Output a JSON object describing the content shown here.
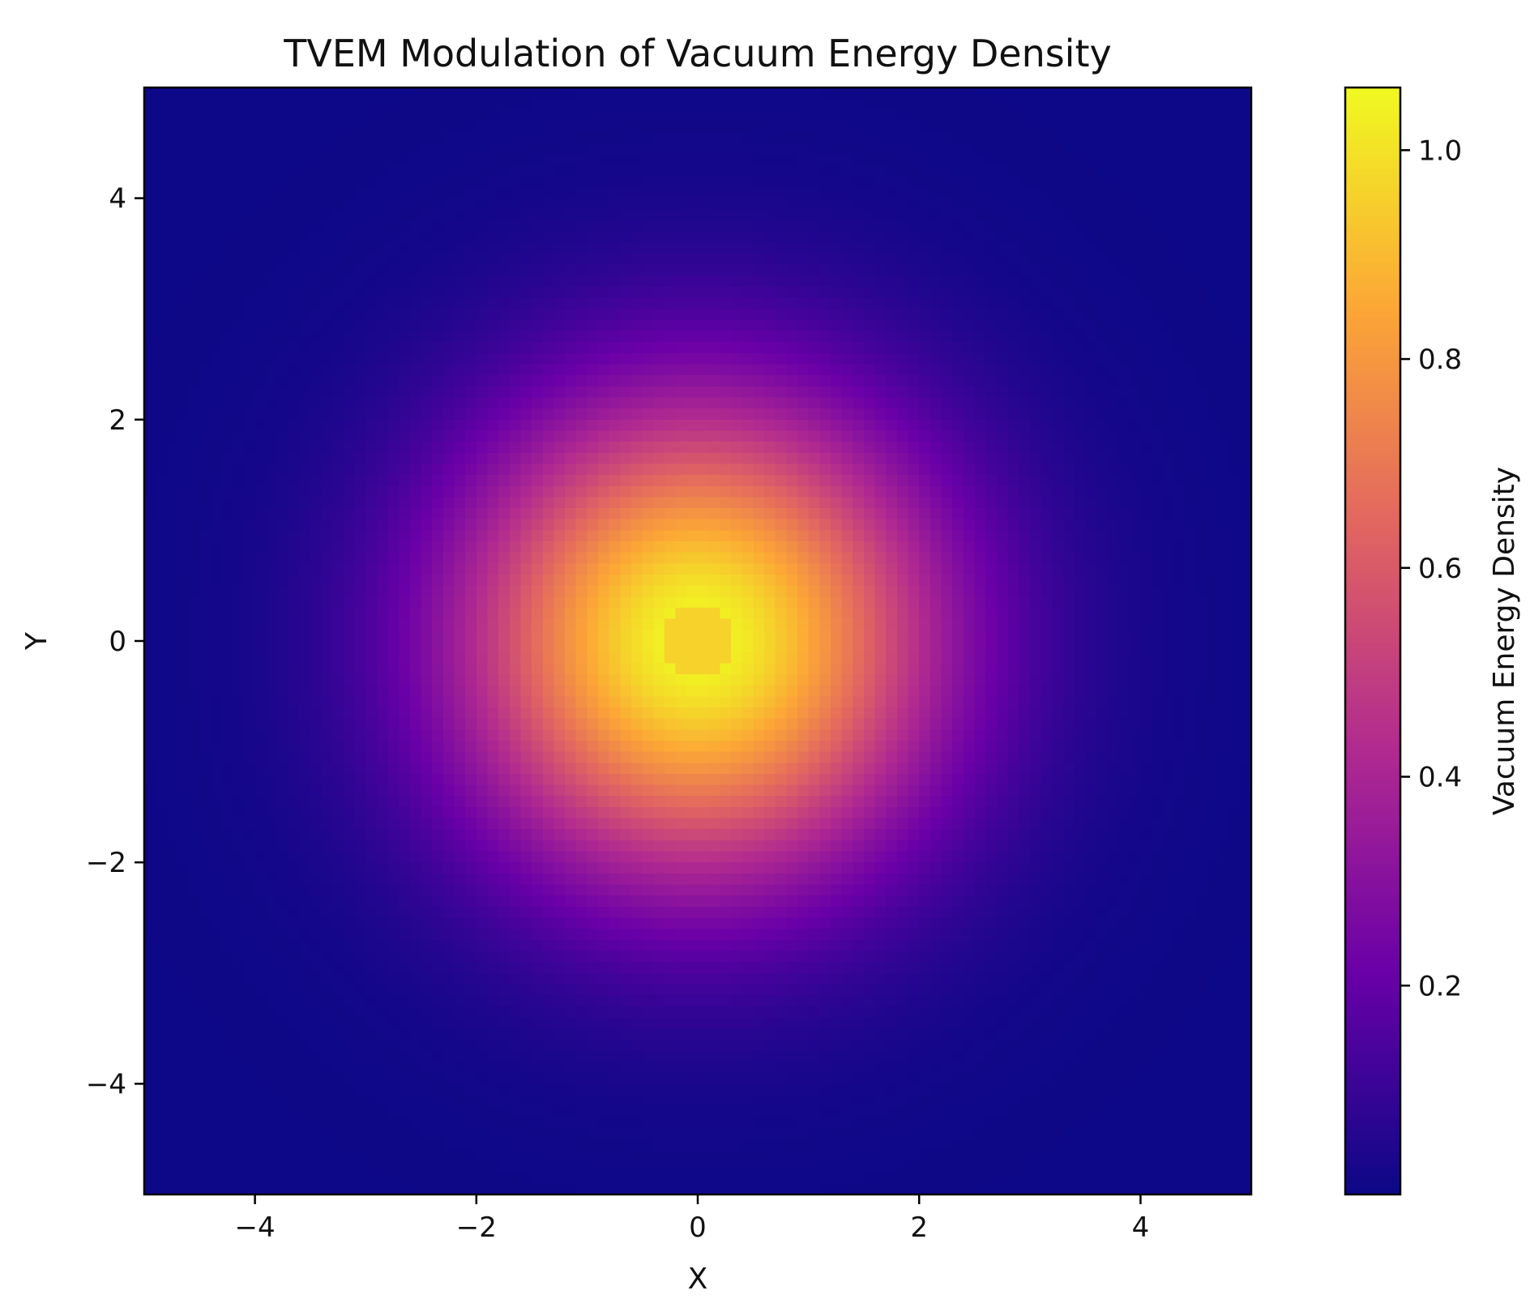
{
  "chart_data": {
    "type": "heatmap",
    "title": "TVEM Modulation of Vacuum Energy Density",
    "xlabel": "X",
    "ylabel": "Y",
    "xlim": [
      -5,
      5
    ],
    "ylim": [
      -5,
      5
    ],
    "xticks": [
      -4,
      -2,
      0,
      2,
      4
    ],
    "yticks": [
      -4,
      -2,
      0,
      2,
      4
    ],
    "xtick_labels": [
      "−4",
      "−2",
      "0",
      "2",
      "4"
    ],
    "ytick_labels": [
      "−4",
      "−2",
      "0",
      "2",
      "4"
    ],
    "grid": false,
    "colormap": "plasma",
    "colormap_stops": [
      "#0d0887",
      "#6a00a8",
      "#b12a90",
      "#e16462",
      "#fca636",
      "#f0f921"
    ],
    "grid_resolution": [
      100,
      100
    ],
    "field": {
      "description_of_values": "radially symmetric density peaking near the origin",
      "peak_value": 1.06,
      "center_value": 0.96,
      "center": [
        0,
        0
      ],
      "gaussian_sigma": 1.5,
      "background_value": 0.0
    },
    "colorbar": {
      "label": "Vacuum Energy Density",
      "range": [
        0.0,
        1.06
      ],
      "ticks": [
        0.2,
        0.4,
        0.6,
        0.8,
        1.0
      ],
      "tick_labels": [
        "0.2",
        "0.4",
        "0.6",
        "0.8",
        "1.0"
      ]
    }
  }
}
